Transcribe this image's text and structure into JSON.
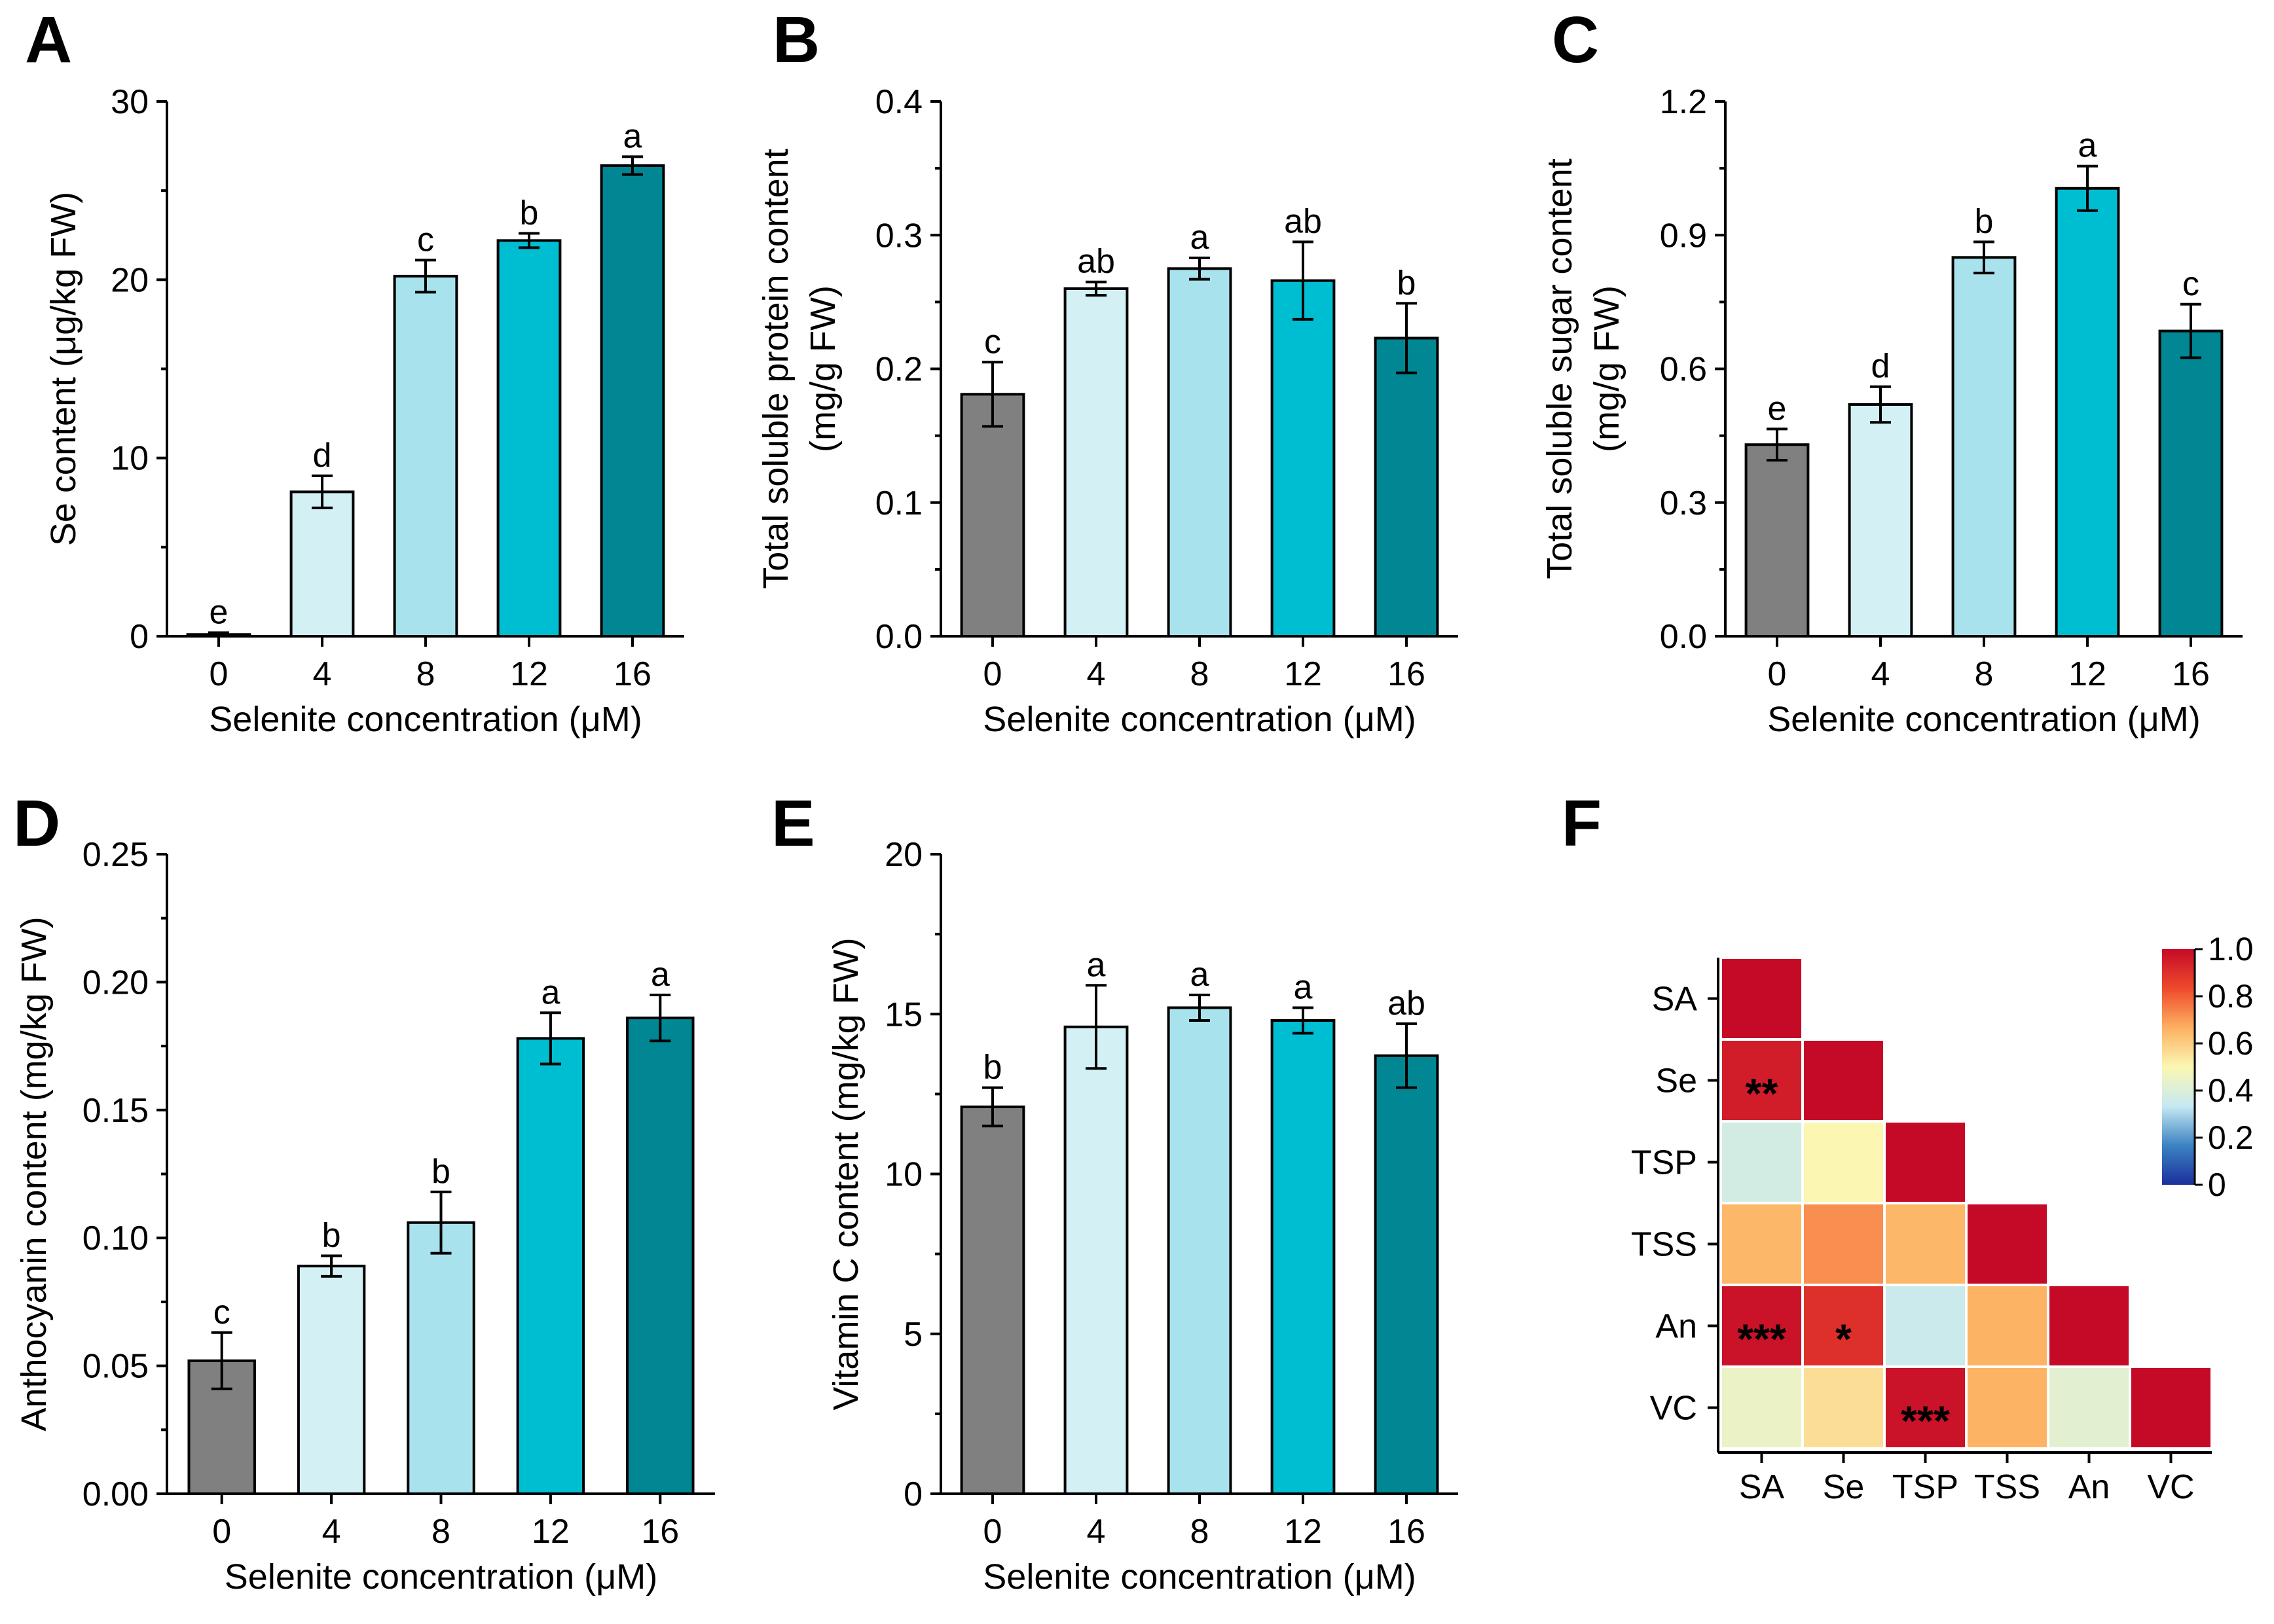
{
  "chart_data": [
    {
      "id": "A",
      "panel_label": "A",
      "type": "bar",
      "categories": [
        "0",
        "4",
        "8",
        "12",
        "16"
      ],
      "values": [
        0.1,
        8.1,
        20.2,
        22.2,
        26.4
      ],
      "errors": [
        0.1,
        0.9,
        0.9,
        0.4,
        0.5
      ],
      "significance": [
        "e",
        "d",
        "c",
        "b",
        "a"
      ],
      "colors": [
        "#808080",
        "#d3f0f4",
        "#a8e3ed",
        "#00bed2",
        "#008793"
      ],
      "xlabel": "Selenite concentration (μM)",
      "ylabel": "Se content (μg/kg FW)",
      "ylim": [
        0,
        30
      ],
      "yticks": [
        "0",
        "10",
        "20",
        "30"
      ]
    },
    {
      "id": "B",
      "panel_label": "B",
      "type": "bar",
      "categories": [
        "0",
        "4",
        "8",
        "12",
        "16"
      ],
      "values": [
        0.181,
        0.26,
        0.275,
        0.266,
        0.223
      ],
      "errors": [
        0.024,
        0.005,
        0.008,
        0.029,
        0.026
      ],
      "significance": [
        "c",
        "ab",
        "a",
        "ab",
        "b"
      ],
      "colors": [
        "#808080",
        "#d3f0f4",
        "#a8e3ed",
        "#00bed2",
        "#008793"
      ],
      "xlabel": "Selenite concentration (μM)",
      "ylabel": [
        "Total soluble protein content",
        "(mg/g FW)"
      ],
      "ylim": [
        0,
        0.4
      ],
      "yticks": [
        "0.0",
        "0.1",
        "0.2",
        "0.3",
        "0.4"
      ]
    },
    {
      "id": "C",
      "panel_label": "C",
      "type": "bar",
      "categories": [
        "0",
        "4",
        "8",
        "12",
        "16"
      ],
      "values": [
        0.43,
        0.52,
        0.85,
        1.005,
        0.685
      ],
      "errors": [
        0.035,
        0.04,
        0.035,
        0.05,
        0.06
      ],
      "significance": [
        "e",
        "d",
        "b",
        "a",
        "c"
      ],
      "colors": [
        "#808080",
        "#d3f0f4",
        "#a8e3ed",
        "#00bed2",
        "#008793"
      ],
      "xlabel": "Selenite concentration (μM)",
      "ylabel": [
        "Total soluble sugar content",
        "(mg/g FW)"
      ],
      "ylim": [
        0,
        1.2
      ],
      "yticks": [
        "0.0",
        "0.3",
        "0.6",
        "0.9",
        "1.2"
      ]
    },
    {
      "id": "D",
      "panel_label": "D",
      "type": "bar",
      "categories": [
        "0",
        "4",
        "8",
        "12",
        "16"
      ],
      "values": [
        0.052,
        0.089,
        0.106,
        0.178,
        0.186
      ],
      "errors": [
        0.011,
        0.004,
        0.012,
        0.01,
        0.009
      ],
      "significance": [
        "c",
        "b",
        "b",
        "a",
        "a"
      ],
      "colors": [
        "#808080",
        "#d3f0f4",
        "#a8e3ed",
        "#00bed2",
        "#008793"
      ],
      "xlabel": "Selenite concentration (μM)",
      "ylabel": "Anthocyanin content (mg/kg FW)",
      "ylim": [
        0,
        0.25
      ],
      "yticks": [
        "0.00",
        "0.05",
        "0.10",
        "0.15",
        "0.20",
        "0.25"
      ]
    },
    {
      "id": "E",
      "panel_label": "E",
      "type": "bar",
      "categories": [
        "0",
        "4",
        "8",
        "12",
        "16"
      ],
      "values": [
        12.1,
        14.6,
        15.2,
        14.8,
        13.7
      ],
      "errors": [
        0.6,
        1.3,
        0.4,
        0.4,
        1.0
      ],
      "significance": [
        "b",
        "a",
        "a",
        "a",
        "ab"
      ],
      "colors": [
        "#808080",
        "#d3f0f4",
        "#a8e3ed",
        "#00bed2",
        "#008793"
      ],
      "xlabel": "Selenite concentration (μM)",
      "ylabel": "Vitamin C content (mg/kg FW)",
      "ylim": [
        0,
        20
      ],
      "yticks": [
        "0",
        "5",
        "10",
        "15",
        "20"
      ]
    },
    {
      "id": "F",
      "panel_label": "F",
      "type": "heatmap",
      "variables": [
        "SA",
        "Se",
        "TSP",
        "TSS",
        "An",
        "VC"
      ],
      "matrix": [
        [
          1.0,
          null,
          null,
          null,
          null,
          null
        ],
        [
          0.95,
          1.0,
          null,
          null,
          null,
          null
        ],
        [
          0.37,
          0.5,
          1.0,
          null,
          null,
          null
        ],
        [
          0.65,
          0.72,
          0.65,
          1.0,
          null,
          null
        ],
        [
          0.98,
          0.9,
          0.35,
          0.66,
          1.0,
          null
        ],
        [
          0.45,
          0.56,
          0.98,
          0.66,
          0.42,
          1.0
        ]
      ],
      "significance": [
        [
          "",
          "",
          "",
          "",
          "",
          ""
        ],
        [
          "**",
          "",
          "",
          "",
          "",
          ""
        ],
        [
          "",
          "",
          "",
          "",
          "",
          ""
        ],
        [
          "",
          "",
          "",
          "",
          "",
          ""
        ],
        [
          "***",
          "*",
          "",
          "",
          "",
          ""
        ],
        [
          "",
          "",
          "***",
          "",
          "",
          ""
        ]
      ],
      "colorbar": {
        "range": [
          0,
          1
        ],
        "ticks": [
          "0",
          "0.2",
          "0.4",
          "0.6",
          "0.8",
          "1.0"
        ],
        "colors": [
          "#1b2f9c",
          "#3b83c2",
          "#c6e9f2",
          "#fbf7b3",
          "#fdb061",
          "#ee4a2c",
          "#c50a28"
        ]
      }
    }
  ]
}
